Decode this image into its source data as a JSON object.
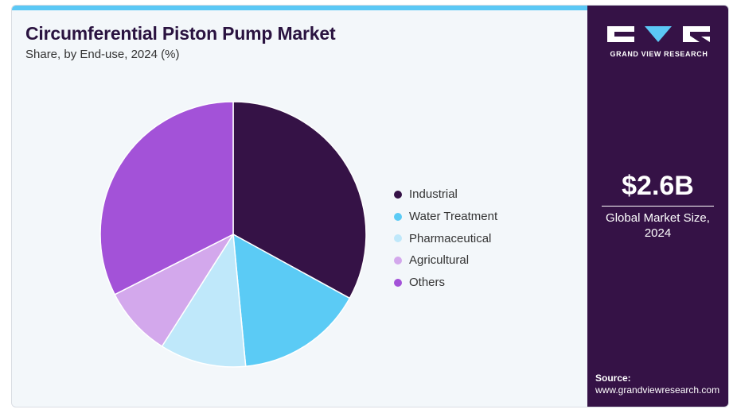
{
  "header": {
    "title": "Circumferential Piston Pump Market",
    "subtitle": "Share, by End-use, 2024 (%)"
  },
  "chart_data": {
    "type": "pie",
    "title": "Circumferential Piston Pump Market",
    "subtitle": "Share, by End-use, 2024 (%)",
    "start_angle_deg": 0,
    "direction": "clockwise",
    "legend_position": "right",
    "slices": [
      {
        "label": "Industrial",
        "value": 33,
        "color": "#351246"
      },
      {
        "label": "Water Treatment",
        "value": 15.5,
        "color": "#5bcbf5"
      },
      {
        "label": "Pharmaceutical",
        "value": 10.5,
        "color": "#bfe8fa"
      },
      {
        "label": "Agricultural",
        "value": 8.5,
        "color": "#d3a8ec"
      },
      {
        "label": "Others",
        "value": 32.5,
        "color": "#a352d8"
      }
    ]
  },
  "sidebar": {
    "logo_text": "GRAND VIEW RESEARCH",
    "stat_value": "$2.6B",
    "stat_label": "Global Market Size, 2024",
    "source_label": "Source:",
    "source_url": "www.grandviewresearch.com"
  },
  "colors": {
    "sidebar_bg": "#351246",
    "accent": "#5bc8f5",
    "panel_bg": "#f3f7fa"
  }
}
